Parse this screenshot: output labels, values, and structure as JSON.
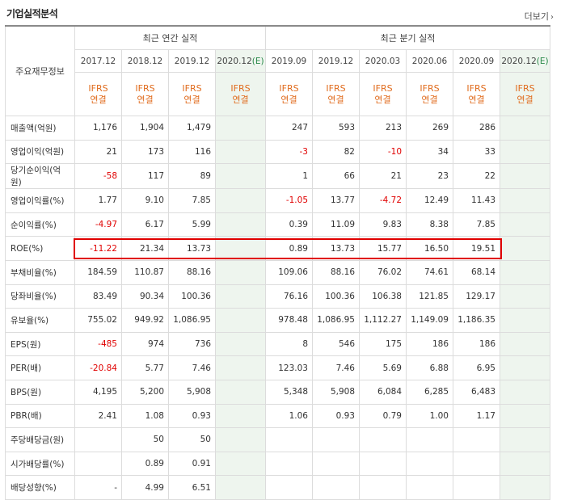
{
  "title": "기업실적분석",
  "more_link": "더보기",
  "header": {
    "row_label": "주요재무정보",
    "annual_group": "최근 연간 실적",
    "quarter_group": "최근 분기 실적",
    "periods": [
      "2017.12",
      "2018.12",
      "2019.12",
      "2020.12",
      "2019.09",
      "2019.12",
      "2020.03",
      "2020.06",
      "2020.09",
      "2020.12"
    ],
    "estimate_mark": "(E)",
    "ifrs": "IFRS",
    "consolidated": "연결"
  },
  "rows": [
    {
      "label": "매출액(억원)",
      "values": [
        "1,176",
        "1,904",
        "1,479",
        "",
        "247",
        "593",
        "213",
        "269",
        "286",
        ""
      ]
    },
    {
      "label": "영업이익(억원)",
      "values": [
        "21",
        "173",
        "116",
        "",
        "-3",
        "82",
        "-10",
        "34",
        "33",
        ""
      ]
    },
    {
      "label": "당기순이익(억원)",
      "values": [
        "-58",
        "117",
        "89",
        "",
        "1",
        "66",
        "21",
        "23",
        "22",
        ""
      ]
    },
    {
      "label": "영업이익률(%)",
      "values": [
        "1.77",
        "9.10",
        "7.85",
        "",
        "-1.05",
        "13.77",
        "-4.72",
        "12.49",
        "11.43",
        ""
      ]
    },
    {
      "label": "순이익률(%)",
      "values": [
        "-4.97",
        "6.17",
        "5.99",
        "",
        "0.39",
        "11.09",
        "9.83",
        "8.38",
        "7.85",
        ""
      ]
    },
    {
      "label": "ROE(%)",
      "values": [
        "-11.22",
        "21.34",
        "13.73",
        "",
        "0.89",
        "13.73",
        "15.77",
        "16.50",
        "19.51",
        ""
      ]
    },
    {
      "label": "부채비율(%)",
      "values": [
        "184.59",
        "110.87",
        "88.16",
        "",
        "109.06",
        "88.16",
        "76.02",
        "74.61",
        "68.14",
        ""
      ]
    },
    {
      "label": "당좌비율(%)",
      "values": [
        "83.49",
        "90.34",
        "100.36",
        "",
        "76.16",
        "100.36",
        "106.38",
        "121.85",
        "129.17",
        ""
      ]
    },
    {
      "label": "유보율(%)",
      "values": [
        "755.02",
        "949.92",
        "1,086.95",
        "",
        "978.48",
        "1,086.95",
        "1,112.27",
        "1,149.09",
        "1,186.35",
        ""
      ]
    },
    {
      "label": "EPS(원)",
      "values": [
        "-485",
        "974",
        "736",
        "",
        "8",
        "546",
        "175",
        "186",
        "186",
        ""
      ]
    },
    {
      "label": "PER(배)",
      "values": [
        "-20.84",
        "5.77",
        "7.46",
        "",
        "123.03",
        "7.46",
        "5.69",
        "6.88",
        "6.95",
        ""
      ]
    },
    {
      "label": "BPS(원)",
      "values": [
        "4,195",
        "5,200",
        "5,908",
        "",
        "5,348",
        "5,908",
        "6,084",
        "6,285",
        "6,483",
        ""
      ]
    },
    {
      "label": "PBR(배)",
      "values": [
        "2.41",
        "1.08",
        "0.93",
        "",
        "1.06",
        "0.93",
        "0.79",
        "1.00",
        "1.17",
        ""
      ]
    },
    {
      "label": "주당배당금(원)",
      "values": [
        "",
        "50",
        "50",
        "",
        "",
        "",
        "",
        "",
        "",
        ""
      ]
    },
    {
      "label": "시가배당률(%)",
      "values": [
        "",
        "0.89",
        "0.91",
        "",
        "",
        "",
        "",
        "",
        "",
        ""
      ]
    },
    {
      "label": "배당성향(%)",
      "values": [
        "-",
        "4.99",
        "6.51",
        "",
        "",
        "",
        "",
        "",
        "",
        ""
      ]
    }
  ],
  "highlight_color": "#e00000"
}
